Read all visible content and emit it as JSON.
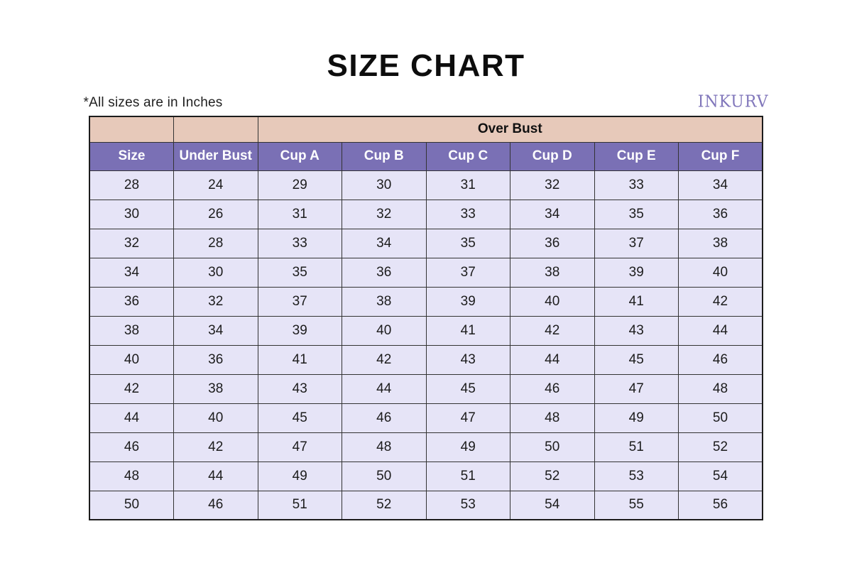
{
  "page": {
    "title": "SIZE CHART",
    "units_note": "*All sizes are in Inches",
    "brand": "INKURV"
  },
  "chart_data": {
    "type": "table",
    "title": "SIZE CHART",
    "note": "*All sizes are in Inches",
    "group_header": {
      "label": "Over Bust",
      "spans_columns": [
        "Cup A",
        "Cup B",
        "Cup C",
        "Cup D",
        "Cup E",
        "Cup F"
      ]
    },
    "columns": [
      "Size",
      "Under Bust",
      "Cup A",
      "Cup B",
      "Cup C",
      "Cup D",
      "Cup E",
      "Cup F"
    ],
    "rows": [
      [
        28,
        24,
        29,
        30,
        31,
        32,
        33,
        34
      ],
      [
        30,
        26,
        31,
        32,
        33,
        34,
        35,
        36
      ],
      [
        32,
        28,
        33,
        34,
        35,
        36,
        37,
        38
      ],
      [
        34,
        30,
        35,
        36,
        37,
        38,
        39,
        40
      ],
      [
        36,
        32,
        37,
        38,
        39,
        40,
        41,
        42
      ],
      [
        38,
        34,
        39,
        40,
        41,
        42,
        43,
        44
      ],
      [
        40,
        36,
        41,
        42,
        43,
        44,
        45,
        46
      ],
      [
        42,
        38,
        43,
        44,
        45,
        46,
        47,
        48
      ],
      [
        44,
        40,
        45,
        46,
        47,
        48,
        49,
        50
      ],
      [
        46,
        42,
        47,
        48,
        49,
        50,
        51,
        52
      ],
      [
        48,
        44,
        49,
        50,
        51,
        52,
        53,
        54
      ],
      [
        50,
        46,
        51,
        52,
        53,
        54,
        55,
        56
      ]
    ]
  },
  "colors": {
    "peach_header_bg": "#e7c9ba",
    "purple_header_bg": "#7a70b5",
    "row_bg": "#e6e4f7",
    "border": "#333333",
    "outer_border": "#1c1c1c",
    "header_text": "#ffffff",
    "body_text": "#1c1c1c",
    "brand_text": "#8177bb"
  }
}
